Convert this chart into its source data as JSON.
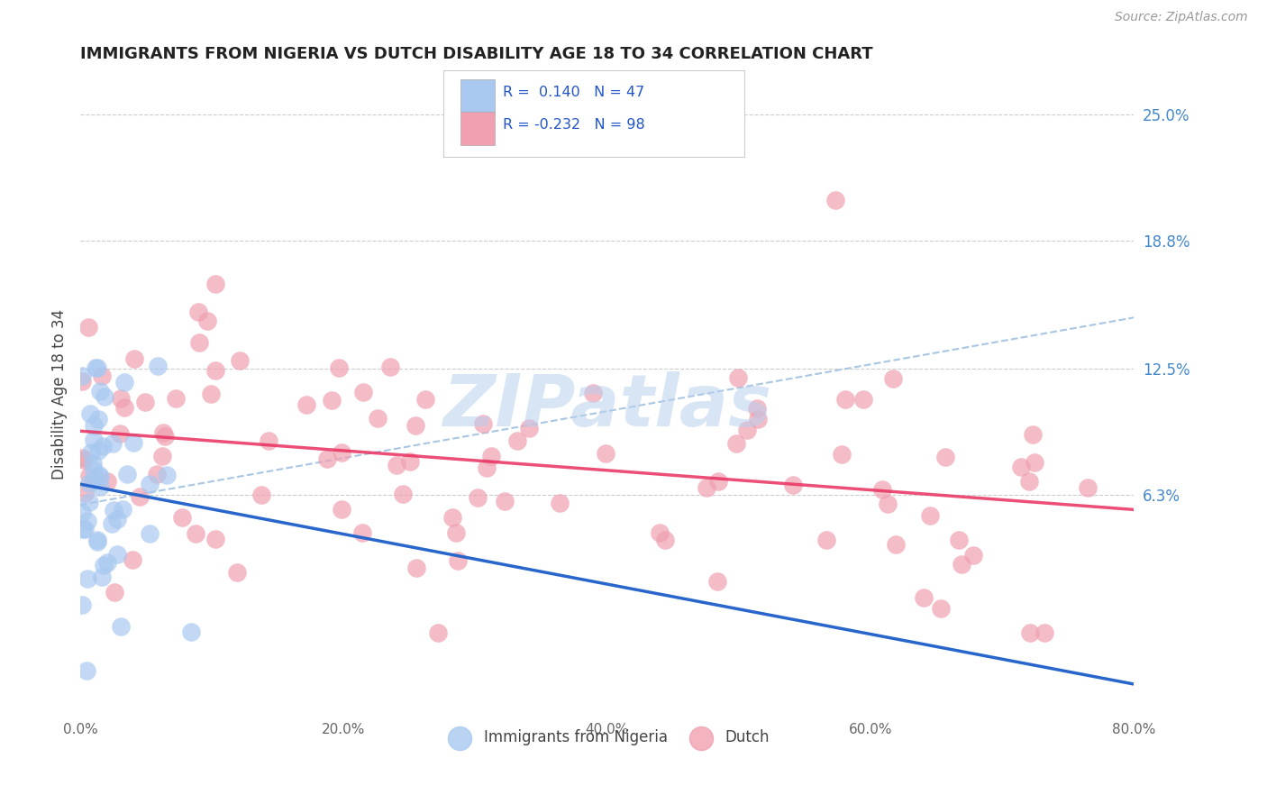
{
  "title": "IMMIGRANTS FROM NIGERIA VS DUTCH DISABILITY AGE 18 TO 34 CORRELATION CHART",
  "source": "Source: ZipAtlas.com",
  "ylabel": "Disability Age 18 to 34",
  "right_yticks": [
    0.063,
    0.125,
    0.188,
    0.25
  ],
  "right_yticklabels": [
    "6.3%",
    "12.5%",
    "18.8%",
    "25.0%"
  ],
  "xmin": 0.0,
  "xmax": 0.8,
  "ymin": -0.045,
  "ymax": 0.27,
  "nigeria_R": 0.14,
  "nigeria_N": 47,
  "dutch_R": -0.232,
  "dutch_N": 98,
  "nigeria_color": "#a8c8f0",
  "dutch_color": "#f0a0b0",
  "nigeria_line_color": "#2866cc",
  "dutch_line_color": "#e83060",
  "dashed_line_color": "#a0c0e0",
  "watermark_text": "ZIPatlas",
  "watermark_color": "#b8d0ee"
}
